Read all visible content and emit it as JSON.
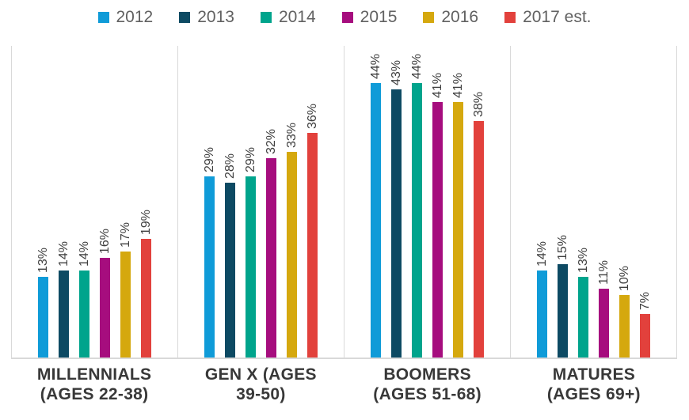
{
  "chart_data": {
    "type": "bar",
    "title": "",
    "xlabel": "",
    "ylabel": "",
    "value_suffix": "%",
    "ylim": [
      0,
      50
    ],
    "legend_position": "top",
    "grid": "vertical category separators only",
    "data_labels": "rotated 90deg above bars",
    "categories": [
      "MILLENNIALS (AGES 22-38)",
      "GEN X (AGES 39-50)",
      "BOOMERS (AGES 51-68)",
      "MATURES (AGES 69+)"
    ],
    "category_lines": [
      [
        "MILLENNIALS",
        "(AGES 22-38)"
      ],
      [
        "GEN X (AGES",
        "39-50)"
      ],
      [
        "BOOMERS",
        "(AGES 51-68)"
      ],
      [
        "MATURES",
        "(AGES 69+)"
      ]
    ],
    "series": [
      {
        "name": "2012",
        "color": "#0F9BD8",
        "values": [
          13,
          29,
          44,
          14
        ]
      },
      {
        "name": "2013",
        "color": "#0D4A63",
        "values": [
          14,
          28,
          43,
          15
        ]
      },
      {
        "name": "2014",
        "color": "#00A48C",
        "values": [
          14,
          29,
          44,
          13
        ]
      },
      {
        "name": "2015",
        "color": "#A60D7E",
        "values": [
          16,
          32,
          41,
          11
        ]
      },
      {
        "name": "2016",
        "color": "#D5A80E",
        "values": [
          17,
          33,
          41,
          10
        ]
      },
      {
        "name": "2017 est.",
        "color": "#E2413C",
        "values": [
          19,
          36,
          38,
          7
        ]
      }
    ],
    "palette": {
      "gridline": "#D9D9D9",
      "data_label_text": "#3F3F3F",
      "category_label_text": "#383838",
      "legend_text": "#616161",
      "background": "#FFFFFF"
    }
  }
}
